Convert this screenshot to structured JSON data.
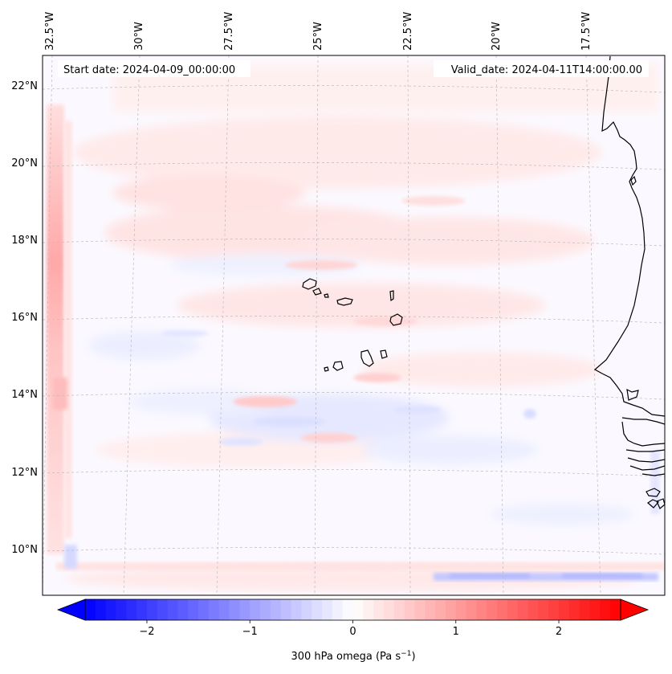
{
  "header": {
    "start_date": "Start date: 2024-04-09_00:00:00",
    "valid_date": "Valid_date: 2024-04-11T14:00:00.00"
  },
  "map": {
    "lon_labels": [
      "32.5°W",
      "30°W",
      "27.5°W",
      "25°W",
      "22.5°W",
      "20°W",
      "17.5°W"
    ],
    "lat_labels": [
      "22°N",
      "20°N",
      "18°N",
      "16°N",
      "14°N",
      "12°N",
      "10°N"
    ],
    "gridlines": "dashed"
  },
  "colorbar": {
    "ticks": [
      "−2",
      "−1",
      "0",
      "1",
      "2"
    ],
    "tick_values": [
      -2,
      -1,
      0,
      1,
      2
    ],
    "range": [
      -2.6,
      2.6
    ],
    "label_prefix": "300 hPa omega (Pa s",
    "label_exp": "−1",
    "label_suffix": ")",
    "cmap": "bwr",
    "extend": "both",
    "colors": {
      "low": "#0000ff",
      "mid": "#ffffff",
      "high": "#ff0000"
    }
  },
  "palette": {
    "land_line": "#000000",
    "grid_line": "#bbbbbb"
  }
}
